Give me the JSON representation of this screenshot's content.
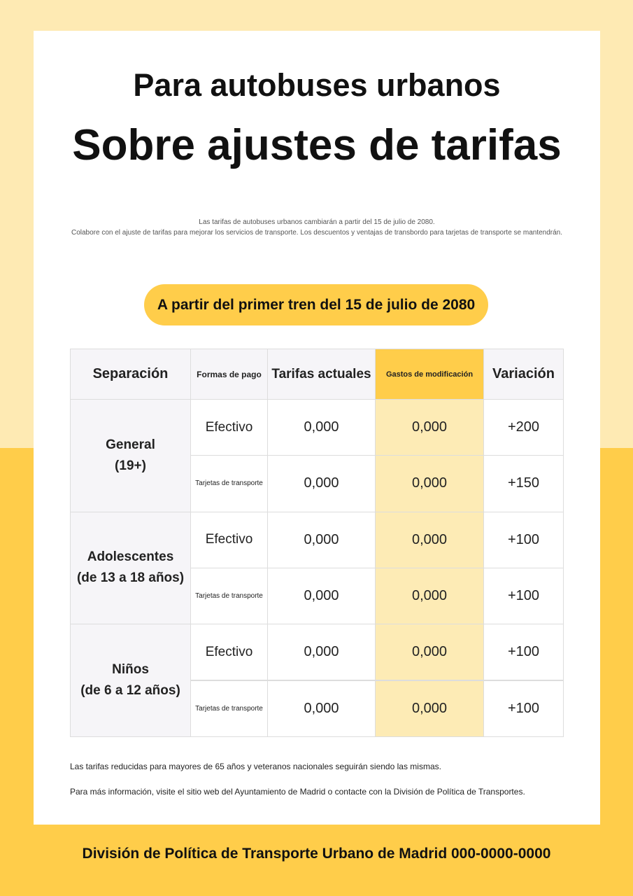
{
  "header": {
    "subtitle": "Para autobuses urbanos",
    "title": "Sobre ajustes de tarifas"
  },
  "intro": [
    "Las tarifas de autobuses urbanos cambiarán a partir del 15 de julio de 2080.",
    "Colabore con el ajuste de tarifas para mejorar los servicios de transporte. Los descuentos y ventajas de transbordo para tarjetas de transporte se mantendrán."
  ],
  "banner": "A partir del primer tren del 15 de julio de 2080",
  "table": {
    "columns": [
      "Separación",
      "Formas de pago",
      "Tarifas actuales",
      "Gastos de modificación",
      "Variación"
    ],
    "groups": [
      {
        "label": [
          "General",
          "(19+)"
        ],
        "rows": [
          [
            "Efectivo",
            "0,000",
            "0,000",
            "+200"
          ],
          [
            "Tarjetas de transporte",
            "0,000",
            "0,000",
            "+150"
          ]
        ]
      },
      {
        "label": [
          "Adolescentes",
          "(de 13 a 18 años)"
        ],
        "rows": [
          [
            "Efectivo",
            "0,000",
            "0,000",
            "+100"
          ],
          [
            "Tarjetas de transporte",
            "0,000",
            "0,000",
            "+100"
          ]
        ]
      },
      {
        "label": [
          "Niños",
          "(de 6 a 12 años)"
        ],
        "rows": [
          [
            "Efectivo",
            "0,000",
            "0,000",
            "+100"
          ],
          [
            "Tarjetas de transporte",
            "0,000",
            "0,000",
            "+100"
          ]
        ]
      }
    ]
  },
  "notes": [
    "Las tarifas reducidas para mayores de 65 años y veteranos nacionales seguirán siendo las mismas.",
    "Para más información, visite el sitio web del Ayuntamiento de Madrid o contacte con la División de Política de Transportes."
  ],
  "footer": "División de Política de Transporte Urbano de Madrid 000-0000-0000"
}
